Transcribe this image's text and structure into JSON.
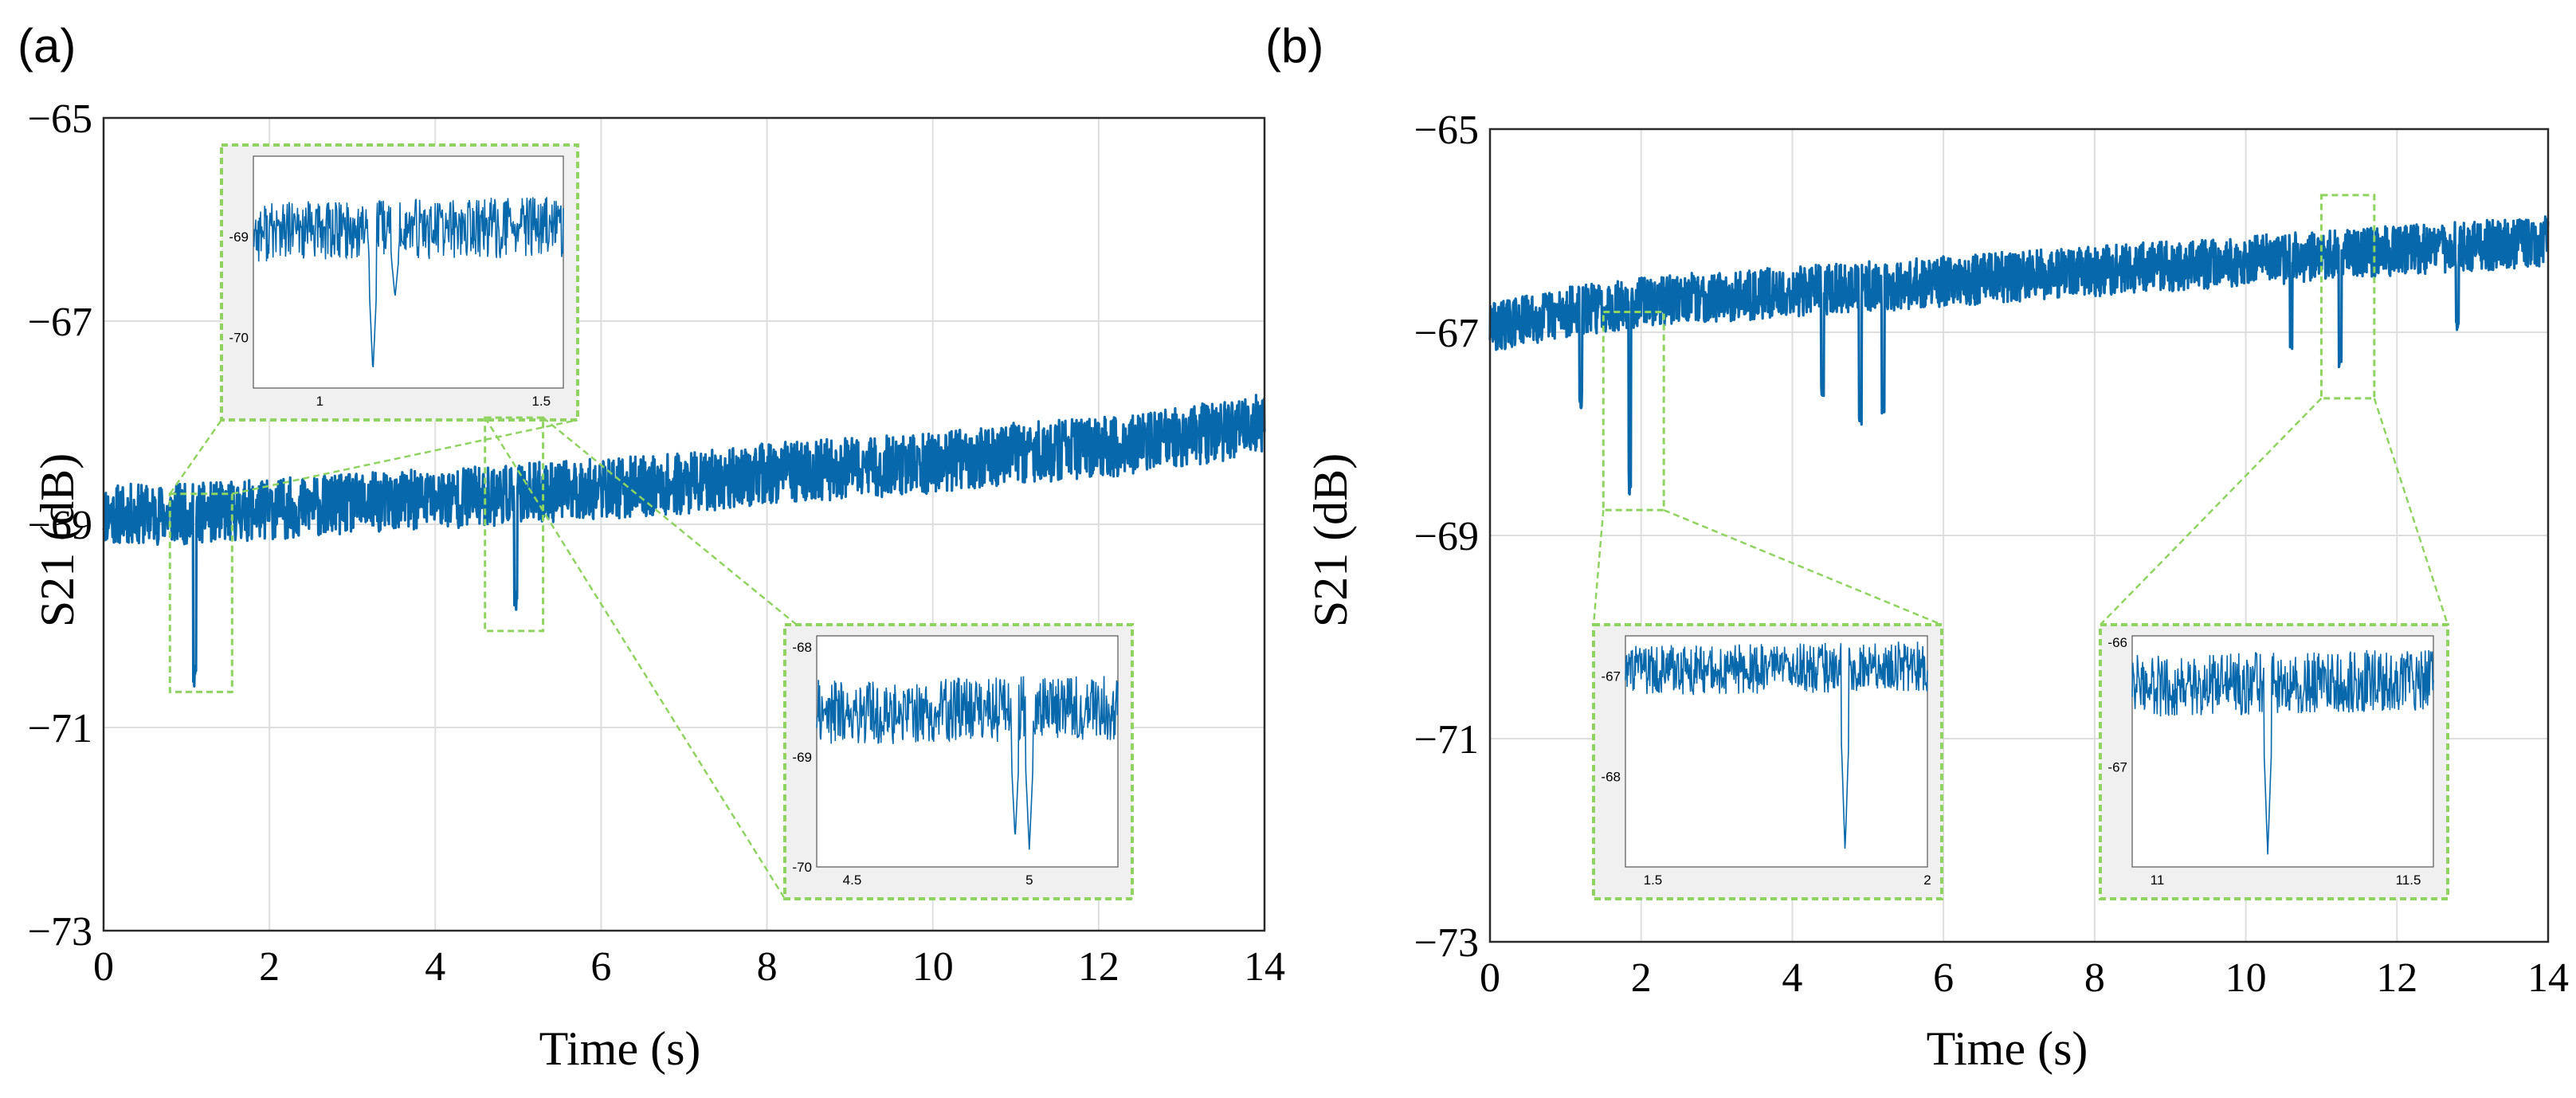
{
  "colors": {
    "line": "#0868ac",
    "grid": "#dedede",
    "frame": "#2a2a2a",
    "inset_border": "#8fd461",
    "inset_bg": "#f0f0f0"
  },
  "chart_data": [
    {
      "type": "line",
      "panel_label": "(a)",
      "xlabel": "Time (s)",
      "ylabel": "S21 (dB)",
      "xlim": [
        0,
        14
      ],
      "ylim": [
        -73,
        -65
      ],
      "xticks": [
        0,
        2,
        4,
        6,
        8,
        10,
        12,
        14
      ],
      "xtick_labels": [
        "0",
        "2",
        "4",
        "6",
        "8",
        "10",
        "12",
        "14"
      ],
      "yticks": [
        -73,
        -71,
        -69,
        -67,
        -65
      ],
      "ytick_labels": [
        "−73",
        "−71",
        "−69",
        "−67",
        "−65"
      ],
      "grid": true,
      "series": [
        {
          "name": "S21",
          "x": [
            0,
            1,
            2,
            3,
            4,
            5,
            6,
            7,
            8,
            9,
            10,
            11,
            12,
            13,
            14
          ],
          "y": [
            -68.9,
            -68.9,
            -68.85,
            -68.8,
            -68.75,
            -68.7,
            -68.65,
            -68.6,
            -68.5,
            -68.45,
            -68.4,
            -68.3,
            -68.25,
            -68.15,
            -68.0
          ],
          "noise_amplitude": 0.3,
          "dips": [
            {
              "x": 1.1,
              "depth": -70.6
            },
            {
              "x": 4.97,
              "depth": -69.9
            }
          ]
        }
      ],
      "zoom_regions": [
        {
          "x": [
            0.8,
            1.55
          ],
          "y": [
            -70.65,
            -68.7
          ]
        },
        {
          "x": [
            4.6,
            5.3
          ],
          "y": [
            -70.05,
            -67.95
          ]
        }
      ],
      "insets": [
        {
          "name": "inset-a1",
          "xlim": [
            0.85,
            1.55
          ],
          "ylim": [
            -70.5,
            -68.2
          ],
          "xticks": [
            1,
            1.5
          ],
          "xtick_labels": [
            "1",
            "1.5"
          ],
          "yticks": [
            -69,
            -70
          ],
          "ytick_labels": [
            "-69",
            "-70"
          ],
          "base": -68.95,
          "slope": 0.05,
          "noise_amplitude": 0.3,
          "dips": [
            {
              "x": 1.12,
              "depth": -70.35
            },
            {
              "x": 1.17,
              "depth": -69.6
            }
          ]
        },
        {
          "name": "inset-a2",
          "xlim": [
            4.4,
            5.25
          ],
          "ylim": [
            -70,
            -67.9
          ],
          "xticks": [
            4.5,
            5
          ],
          "xtick_labels": [
            "4.5",
            "5"
          ],
          "yticks": [
            -68,
            -69,
            -70
          ],
          "ytick_labels": [
            "-68",
            "-69",
            "-70"
          ],
          "base": -68.6,
          "slope": 0.05,
          "noise_amplitude": 0.3,
          "dips": [
            {
              "x": 4.96,
              "depth": -69.75
            },
            {
              "x": 5.0,
              "depth": -69.85
            }
          ]
        }
      ]
    },
    {
      "type": "line",
      "panel_label": "(b)",
      "xlabel": "Time (s)",
      "ylabel": "S21 (dB)",
      "xlim": [
        0,
        14
      ],
      "ylim": [
        -73,
        -65
      ],
      "xticks": [
        0,
        2,
        4,
        6,
        8,
        10,
        12,
        14
      ],
      "xtick_labels": [
        "0",
        "2",
        "4",
        "6",
        "8",
        "10",
        "12",
        "14"
      ],
      "yticks": [
        -73,
        -71,
        -69,
        -67,
        -65
      ],
      "ytick_labels": [
        "−73",
        "−71",
        "−69",
        "−67",
        "−65"
      ],
      "grid": true,
      "series": [
        {
          "name": "S21",
          "x": [
            0,
            1,
            2,
            3,
            4,
            5,
            6,
            7,
            8,
            9,
            10,
            11,
            12,
            13,
            14
          ],
          "y": [
            -66.95,
            -66.8,
            -66.7,
            -66.65,
            -66.6,
            -66.55,
            -66.5,
            -66.45,
            -66.4,
            -66.35,
            -66.3,
            -66.25,
            -66.2,
            -66.15,
            -66.1
          ],
          "noise_amplitude": 0.25,
          "dips": [
            {
              "x": 1.2,
              "depth": -67.8
            },
            {
              "x": 1.85,
              "depth": -68.6
            },
            {
              "x": 4.4,
              "depth": -67.7
            },
            {
              "x": 4.9,
              "depth": -67.95
            },
            {
              "x": 5.2,
              "depth": -67.8
            },
            {
              "x": 10.6,
              "depth": -67.2
            },
            {
              "x": 11.25,
              "depth": -67.35
            },
            {
              "x": 12.8,
              "depth": -67.0
            }
          ]
        }
      ],
      "zoom_regions": [
        {
          "x": [
            1.5,
            2.3
          ],
          "y": [
            -68.75,
            -66.8
          ]
        },
        {
          "x": [
            11.0,
            11.7
          ],
          "y": [
            -67.65,
            -65.65
          ]
        }
      ],
      "insets": [
        {
          "name": "inset-b1",
          "xlim": [
            1.45,
            2.0
          ],
          "ylim": [
            -68.9,
            -66.6
          ],
          "xticks": [
            1.5,
            2
          ],
          "xtick_labels": [
            "1.5",
            "2"
          ],
          "yticks": [
            -67,
            -68
          ],
          "ytick_labels": [
            "-67",
            "-68"
          ],
          "base": -66.95,
          "slope": 0.05,
          "noise_amplitude": 0.25,
          "dips": [
            {
              "x": 1.85,
              "depth": -68.75
            }
          ]
        },
        {
          "name": "inset-b2",
          "xlim": [
            10.95,
            11.55
          ],
          "ylim": [
            -67.8,
            -65.95
          ],
          "xticks": [
            11,
            11.5
          ],
          "xtick_labels": [
            "11",
            "11.5"
          ],
          "yticks": [
            -66,
            -67
          ],
          "ytick_labels": [
            "-66",
            "-67"
          ],
          "base": -66.35,
          "slope": 0.05,
          "noise_amplitude": 0.25,
          "dips": [
            {
              "x": 11.22,
              "depth": -67.7
            }
          ]
        }
      ]
    }
  ]
}
